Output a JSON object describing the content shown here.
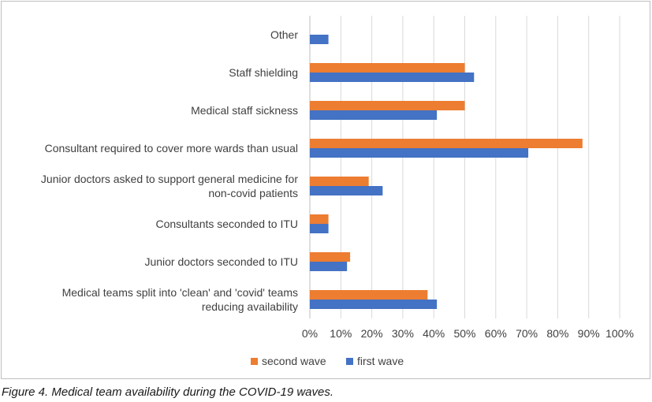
{
  "caption": "Figure 4. Medical team availability during the COVID-19 waves.",
  "chart_data": {
    "type": "bar",
    "orientation": "horizontal",
    "categories": [
      [
        "Other"
      ],
      [
        "Staff shielding"
      ],
      [
        "Medical staff sickness"
      ],
      [
        "Consultant required to cover more wards than usual"
      ],
      [
        "Junior doctors asked to support general medicine for",
        "non-covid patients"
      ],
      [
        "Consultants seconded to ITU"
      ],
      [
        "Junior doctors seconded to ITU"
      ],
      [
        "Medical teams split into 'clean' and 'covid' teams",
        "reducing availability"
      ]
    ],
    "series": [
      {
        "name": "second wave",
        "color": "#ED7D31",
        "values": [
          null,
          50,
          50,
          88,
          19,
          6,
          13,
          38
        ]
      },
      {
        "name": "first wave",
        "color": "#4472C4",
        "values": [
          6,
          53,
          41,
          70.5,
          23.5,
          6,
          12,
          41
        ]
      }
    ],
    "xlim": [
      0,
      100
    ],
    "x_ticks": [
      "0%",
      "10%",
      "20%",
      "30%",
      "40%",
      "50%",
      "60%",
      "70%",
      "80%",
      "90%",
      "100%"
    ],
    "grid": "vertical",
    "legend_position": "bottom",
    "title": "",
    "xlabel": "",
    "ylabel": ""
  }
}
